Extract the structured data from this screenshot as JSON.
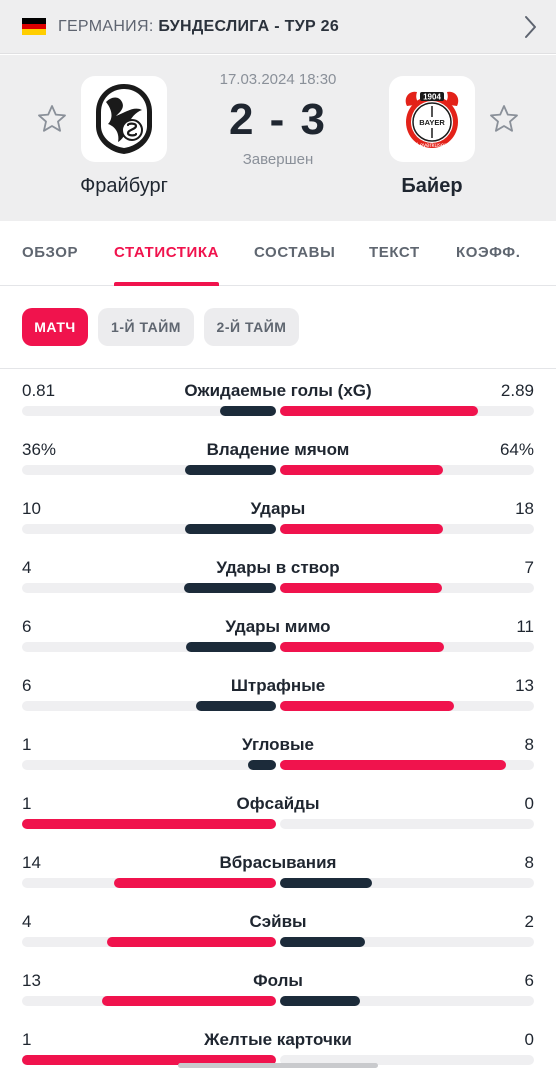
{
  "breadcrumb": {
    "country": "Германия:",
    "competition": "Бундеслига - Тур 26",
    "flag_colors": [
      "#000000",
      "#dd0000",
      "#ffce00"
    ]
  },
  "match": {
    "datetime": "17.03.2024 18:30",
    "score": "2 - 3",
    "status": "Завершен",
    "home": {
      "name": "Фрайбург",
      "logo": "freiburg-crest-icon"
    },
    "away": {
      "name": "Байер",
      "logo": "leverkusen-crest-icon",
      "logo_text": [
        "1904",
        "BAYER",
        "Leverkusen"
      ]
    }
  },
  "tabs": [
    "Обзор",
    "Статистика",
    "Составы",
    "Текст",
    "Коэфф."
  ],
  "active_tab": 1,
  "periods": [
    "Матч",
    "1-й тайм",
    "2-й тайм"
  ],
  "active_period": 0,
  "colors": {
    "accent": "#f0134d",
    "dark": "#1c2b3a",
    "track": "#efeff1"
  },
  "stats": [
    {
      "label": "Ожидаемые голы (xG)",
      "home": "0.81",
      "away": "2.89",
      "home_value": 0.81,
      "away_value": 2.89
    },
    {
      "label": "Владение мячом",
      "home": "36%",
      "away": "64%",
      "home_value": 36,
      "away_value": 64
    },
    {
      "label": "Удары",
      "home": "10",
      "away": "18",
      "home_value": 10,
      "away_value": 18
    },
    {
      "label": "Удары в створ",
      "home": "4",
      "away": "7",
      "home_value": 4,
      "away_value": 7
    },
    {
      "label": "Удары мимо",
      "home": "6",
      "away": "11",
      "home_value": 6,
      "away_value": 11
    },
    {
      "label": "Штрафные",
      "home": "6",
      "away": "13",
      "home_value": 6,
      "away_value": 13
    },
    {
      "label": "Угловые",
      "home": "1",
      "away": "8",
      "home_value": 1,
      "away_value": 8
    },
    {
      "label": "Офсайды",
      "home": "1",
      "away": "0",
      "home_value": 1,
      "away_value": 0
    },
    {
      "label": "Вбрасывания",
      "home": "14",
      "away": "8",
      "home_value": 14,
      "away_value": 8
    },
    {
      "label": "Сэйвы",
      "home": "4",
      "away": "2",
      "home_value": 4,
      "away_value": 2
    },
    {
      "label": "Фолы",
      "home": "13",
      "away": "6",
      "home_value": 13,
      "away_value": 6
    },
    {
      "label": "Желтые карточки",
      "home": "1",
      "away": "0",
      "home_value": 1,
      "away_value": 0
    }
  ]
}
